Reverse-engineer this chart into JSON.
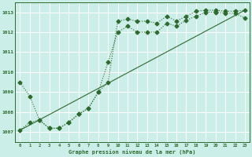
{
  "title": "Graphe pression niveau de la mer (hPa)",
  "bg_color": "#cceee8",
  "grid_color": "#ffffff",
  "line_color": "#2d6a2d",
  "xlim": [
    -0.5,
    23.5
  ],
  "ylim": [
    1006.5,
    1013.5
  ],
  "yticks": [
    1007,
    1008,
    1009,
    1010,
    1011,
    1012,
    1013
  ],
  "xticks": [
    0,
    1,
    2,
    3,
    4,
    5,
    6,
    7,
    8,
    9,
    10,
    11,
    12,
    13,
    14,
    15,
    16,
    17,
    18,
    19,
    20,
    21,
    22,
    23
  ],
  "series1_x": [
    0,
    1,
    2,
    3,
    4,
    5,
    6,
    7,
    8,
    9,
    10,
    11,
    12,
    13,
    14,
    15,
    16,
    17,
    18,
    19,
    20,
    21,
    22,
    23
  ],
  "series1_y": [
    1009.5,
    1008.8,
    1007.6,
    1007.2,
    1007.2,
    1007.5,
    1007.9,
    1008.2,
    1009.0,
    1009.5,
    1012.55,
    1012.65,
    1012.55,
    1012.55,
    1012.45,
    1012.8,
    1012.55,
    1012.8,
    1013.05,
    1013.1,
    1013.1,
    1013.05,
    1013.05,
    1013.1
  ],
  "series2_x": [
    0,
    23
  ],
  "series2_y": [
    1007.1,
    1013.1
  ],
  "series3_x": [
    0,
    1,
    2,
    3,
    4,
    5,
    6,
    7,
    8,
    9,
    10,
    11,
    12,
    13,
    14,
    15,
    16,
    17,
    18,
    19,
    20,
    21,
    22,
    23
  ],
  "series3_y": [
    1007.1,
    1007.5,
    1007.6,
    1007.2,
    1007.2,
    1007.5,
    1007.9,
    1008.2,
    1009.0,
    1010.5,
    1012.0,
    1012.3,
    1012.0,
    1012.0,
    1012.0,
    1012.45,
    1012.3,
    1012.6,
    1012.8,
    1013.0,
    1013.0,
    1012.95,
    1012.95,
    1012.7
  ]
}
